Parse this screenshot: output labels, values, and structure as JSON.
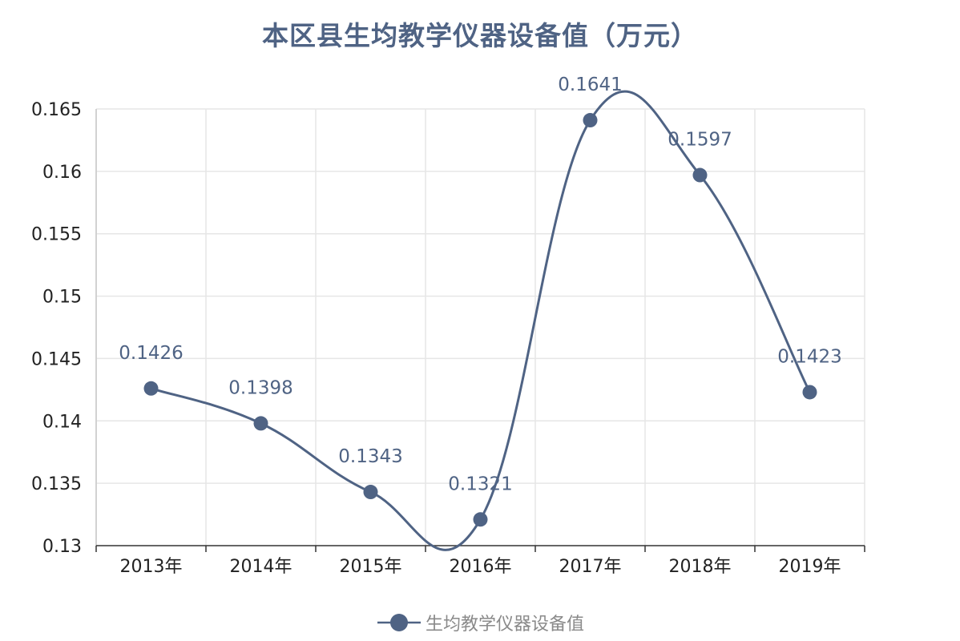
{
  "chart_data": {
    "type": "line",
    "title": "本区县生均教学仪器设备值（万元）",
    "categories": [
      "2013年",
      "2014年",
      "2015年",
      "2016年",
      "2017年",
      "2018年",
      "2019年"
    ],
    "series": [
      {
        "name": "生均教学仪器设备值",
        "values": [
          0.1426,
          0.1398,
          0.1343,
          0.1321,
          0.1641,
          0.1597,
          0.1423
        ]
      }
    ],
    "ylim": [
      0.13,
      0.165
    ],
    "yticks": [
      "0.13",
      "0.135",
      "0.14",
      "0.145",
      "0.15",
      "0.155",
      "0.16",
      "0.165"
    ],
    "smooth": true,
    "grid": true,
    "legend_position": "bottom-center",
    "color": "#4f6384"
  }
}
